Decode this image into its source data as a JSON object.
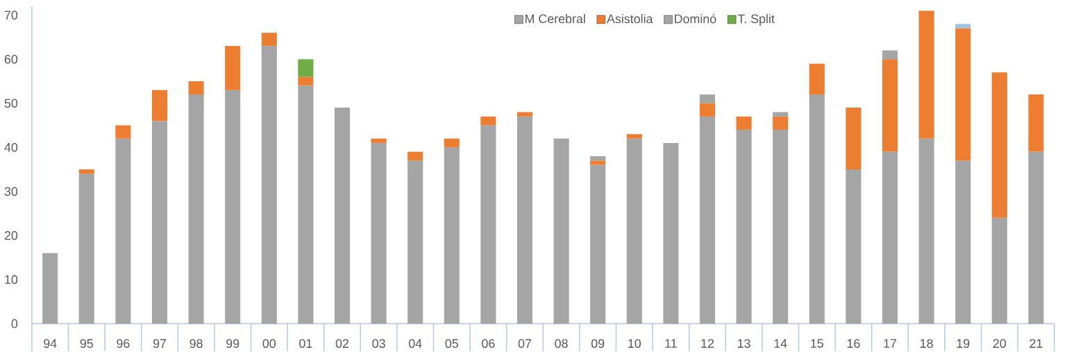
{
  "chart_data": {
    "type": "bar",
    "stacked": true,
    "legend": "top",
    "categories": [
      "94",
      "95",
      "96",
      "97",
      "98",
      "99",
      "00",
      "01",
      "02",
      "03",
      "04",
      "05",
      "06",
      "07",
      "08",
      "09",
      "10",
      "11",
      "12",
      "13",
      "14",
      "15",
      "16",
      "17",
      "18",
      "19",
      "20",
      "21"
    ],
    "ylim": [
      0,
      72
    ],
    "yticks": [
      0,
      10,
      20,
      30,
      40,
      50,
      60,
      70
    ],
    "series": [
      {
        "name": "M Cerebral",
        "color": "#a5a5a5",
        "values": [
          16,
          34,
          42,
          46,
          52,
          53,
          63,
          54,
          49,
          41,
          37,
          40,
          45,
          47,
          42,
          36,
          42,
          41,
          47,
          44,
          44,
          52,
          35,
          39,
          42,
          37,
          24,
          39
        ]
      },
      {
        "name": "Asistolia",
        "color": "#ed7d31",
        "values": [
          null,
          1,
          3,
          7,
          3,
          10,
          3,
          2,
          null,
          1,
          2,
          2,
          2,
          1,
          null,
          1,
          1,
          null,
          3,
          3,
          3,
          7,
          14,
          21,
          29,
          30,
          33,
          13
        ]
      },
      {
        "name": "Dominó",
        "color": "#a5a5a5",
        "values": [
          null,
          null,
          null,
          null,
          null,
          null,
          null,
          null,
          null,
          null,
          null,
          null,
          null,
          null,
          null,
          1,
          null,
          null,
          2,
          null,
          1,
          null,
          null,
          2,
          null,
          null,
          null,
          null
        ]
      },
      {
        "name": "T. Split",
        "color": "#70ad47",
        "values": [
          null,
          null,
          null,
          null,
          null,
          null,
          null,
          4,
          null,
          null,
          null,
          null,
          null,
          null,
          null,
          null,
          null,
          null,
          null,
          null,
          null,
          null,
          null,
          null,
          null,
          null,
          null,
          null
        ]
      },
      {
        "color": "#9dc3e6",
        "values": [
          null,
          null,
          null,
          null,
          null,
          null,
          null,
          null,
          null,
          null,
          null,
          null,
          null,
          null,
          null,
          null,
          null,
          null,
          null,
          null,
          null,
          null,
          null,
          null,
          null,
          1,
          null,
          null
        ]
      }
    ]
  }
}
